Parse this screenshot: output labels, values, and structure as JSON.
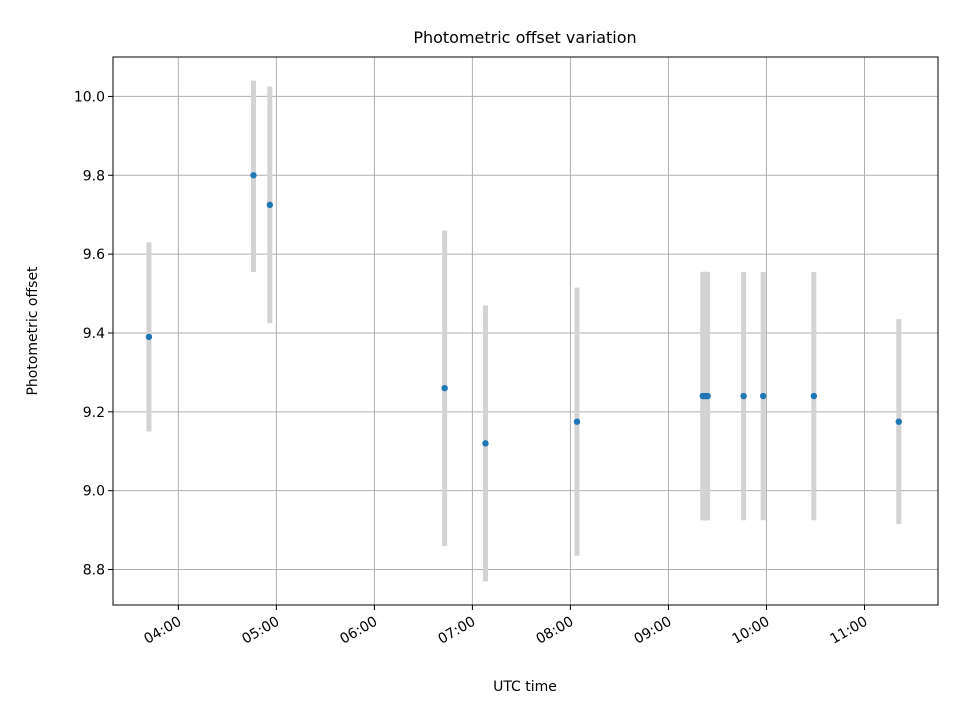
{
  "chart_data": {
    "type": "scatter",
    "title": "Photometric offset variation",
    "xlabel": "UTC time",
    "ylabel": "Photometric offset",
    "x_axis_format": "HH:MM",
    "xlim": [
      "03:20",
      "11:45"
    ],
    "ylim": [
      8.71,
      10.1
    ],
    "grid": true,
    "x_ticks": [
      "04:00",
      "05:00",
      "06:00",
      "07:00",
      "08:00",
      "09:00",
      "10:00",
      "11:00"
    ],
    "y_ticks": [
      8.8,
      9.0,
      9.2,
      9.4,
      9.6,
      9.8,
      10.0
    ],
    "point_color": "#1f77b4",
    "errorbar_color": "#d3d3d3",
    "points": [
      {
        "x": "03:42",
        "y": 9.39,
        "ylow": 9.15,
        "yhigh": 9.63
      },
      {
        "x": "04:46",
        "y": 9.8,
        "ylow": 9.555,
        "yhigh": 10.04
      },
      {
        "x": "04:56",
        "y": 9.725,
        "ylow": 9.425,
        "yhigh": 10.025
      },
      {
        "x": "06:43",
        "y": 9.26,
        "ylow": 8.86,
        "yhigh": 9.66
      },
      {
        "x": "07:08",
        "y": 9.12,
        "ylow": 8.77,
        "yhigh": 9.47
      },
      {
        "x": "08:04",
        "y": 9.175,
        "ylow": 8.835,
        "yhigh": 9.515
      },
      {
        "x": "09:21",
        "y": 9.24,
        "ylow": 8.925,
        "yhigh": 9.555
      },
      {
        "x": "09:22",
        "y": 9.24,
        "ylow": 8.925,
        "yhigh": 9.555
      },
      {
        "x": "09:23",
        "y": 9.24,
        "ylow": 8.925,
        "yhigh": 9.555
      },
      {
        "x": "09:24",
        "y": 9.24,
        "ylow": 8.925,
        "yhigh": 9.555
      },
      {
        "x": "09:46",
        "y": 9.24,
        "ylow": 8.925,
        "yhigh": 9.555
      },
      {
        "x": "09:58",
        "y": 9.24,
        "ylow": 8.925,
        "yhigh": 9.555
      },
      {
        "x": "10:29",
        "y": 9.24,
        "ylow": 8.925,
        "yhigh": 9.555
      },
      {
        "x": "11:21",
        "y": 9.175,
        "ylow": 8.915,
        "yhigh": 9.435
      }
    ]
  }
}
